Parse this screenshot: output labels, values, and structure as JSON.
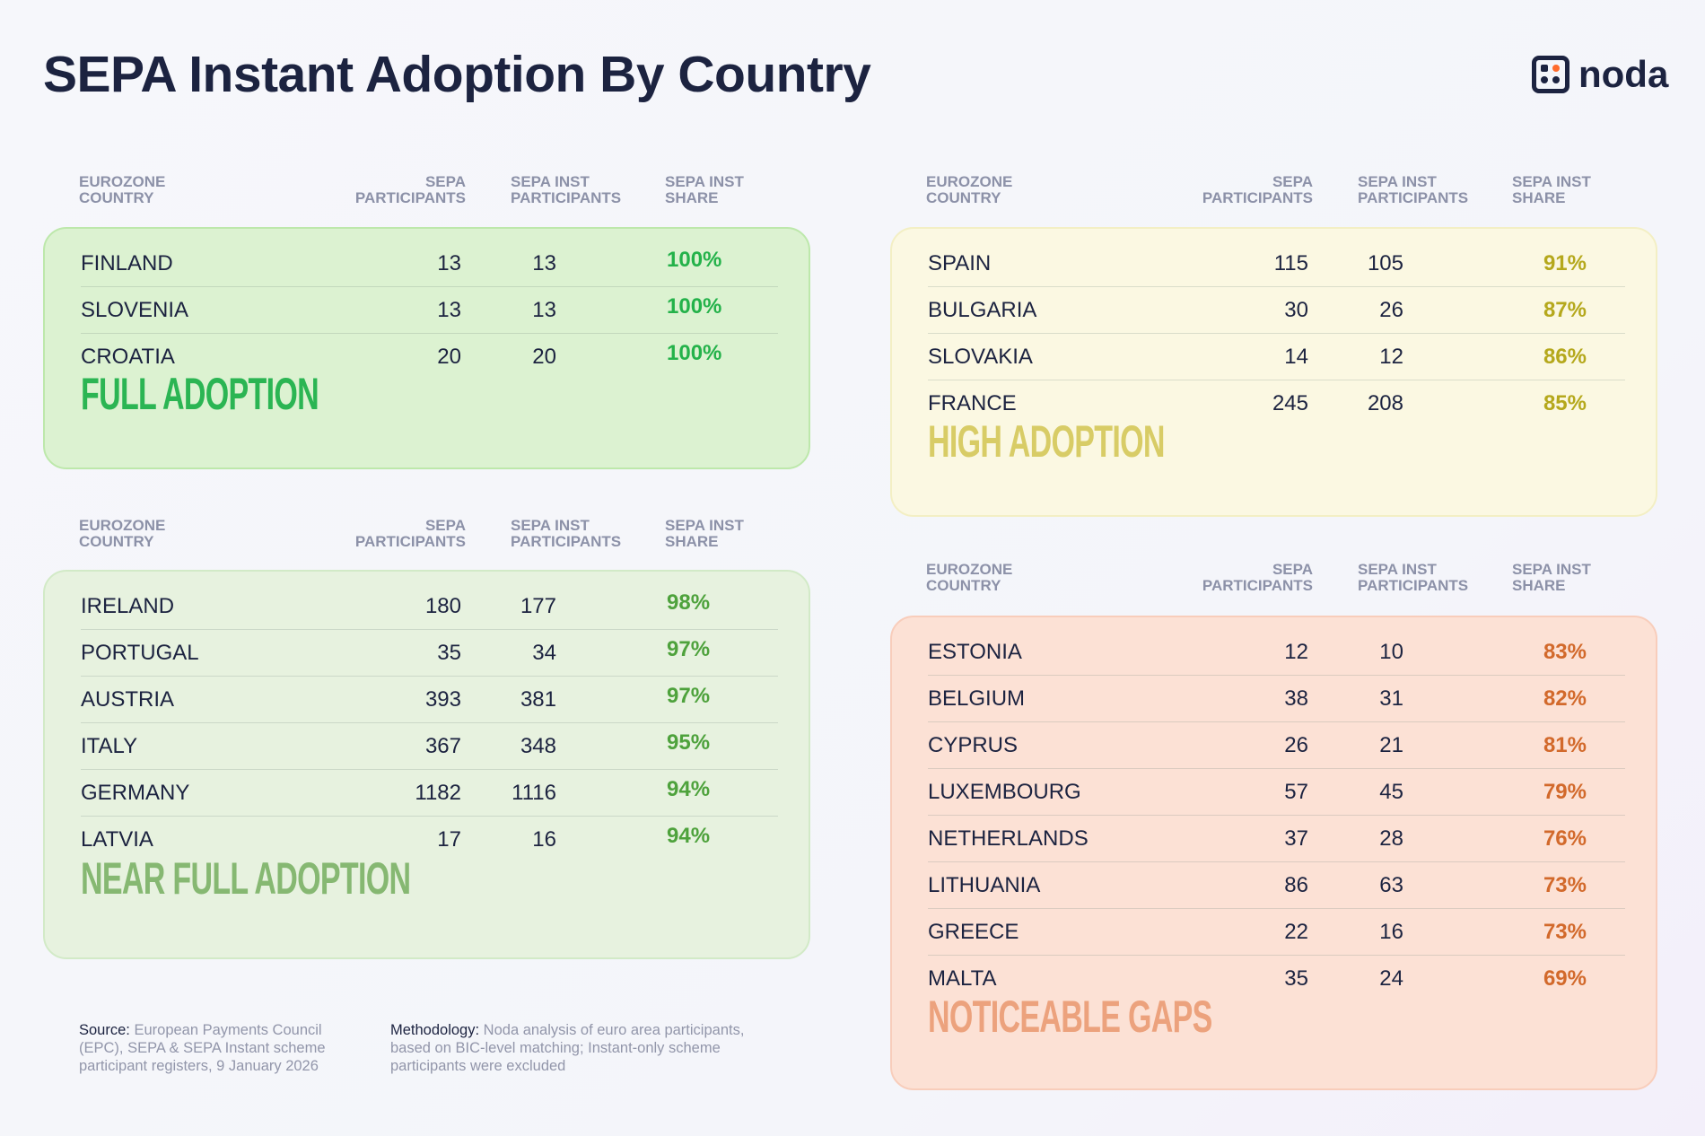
{
  "title": "SEPA Instant Adoption By Country",
  "logo": {
    "text": "noda",
    "accent": "#ff6b2c"
  },
  "headers": {
    "country": "EUROZONE COUNTRY",
    "sepa": "SEPA PARTICIPANTS",
    "inst": "SEPA INST PARTICIPANTS",
    "share": "SEPA INST SHARE"
  },
  "groups": [
    {
      "id": "full",
      "label": "FULL ADOPTION",
      "panel_color": "#dcf2d1",
      "border_color": "#bde8ab",
      "pct_color": "#24b24a",
      "label_color": "#2bb553",
      "rows": [
        {
          "country": "FINLAND",
          "sepa": "13",
          "inst": "13",
          "share": "100%"
        },
        {
          "country": "SLOVENIA",
          "sepa": "13",
          "inst": "13",
          "share": "100%"
        },
        {
          "country": "CROATIA",
          "sepa": "20",
          "inst": "20",
          "share": "100%"
        }
      ]
    },
    {
      "id": "near",
      "label": "NEAR FULL  ADOPTION",
      "panel_color": "#e7f2df",
      "border_color": "#d2eac7",
      "pct_color": "#4ea23c",
      "label_color": "#86b872",
      "rows": [
        {
          "country": "IRELAND",
          "sepa": "180",
          "inst": "177",
          "share": "98%"
        },
        {
          "country": "PORTUGAL",
          "sepa": "35",
          "inst": "34",
          "share": "97%"
        },
        {
          "country": "AUSTRIA",
          "sepa": "393",
          "inst": "381",
          "share": "97%"
        },
        {
          "country": "ITALY",
          "sepa": "367",
          "inst": "348",
          "share": "95%"
        },
        {
          "country": "GERMANY",
          "sepa": "1182",
          "inst": "1116",
          "share": "94%"
        },
        {
          "country": "LATVIA",
          "sepa": "17",
          "inst": "16",
          "share": "94%"
        }
      ]
    },
    {
      "id": "high",
      "label": "HIGH ADOPTION",
      "panel_color": "#fbf8e2",
      "border_color": "#f3efc4",
      "pct_color": "#b5a81c",
      "label_color": "#d8cc66",
      "rows": [
        {
          "country": "SPAIN",
          "sepa": "115",
          "inst": "105",
          "share": "91%"
        },
        {
          "country": "BULGARIA",
          "sepa": "30",
          "inst": "26",
          "share": "87%"
        },
        {
          "country": "SLOVAKIA",
          "sepa": "14",
          "inst": "12",
          "share": "86%"
        },
        {
          "country": "FRANCE",
          "sepa": "245",
          "inst": "208",
          "share": "85%"
        }
      ]
    },
    {
      "id": "gaps",
      "label": "NOTICEABLE GAPS",
      "panel_color": "#fce1d5",
      "border_color": "#f8cdbb",
      "pct_color": "#d2692b",
      "label_color": "#eca27d",
      "rows": [
        {
          "country": "ESTONIA",
          "sepa": "12",
          "inst": "10",
          "share": "83%"
        },
        {
          "country": "BELGIUM",
          "sepa": "38",
          "inst": "31",
          "share": "82%"
        },
        {
          "country": "CYPRUS",
          "sepa": "26",
          "inst": "21",
          "share": "81%"
        },
        {
          "country": "LUXEMBOURG",
          "sepa": "57",
          "inst": "45",
          "share": "79%"
        },
        {
          "country": "NETHERLANDS",
          "sepa": "37",
          "inst": "28",
          "share": "76%"
        },
        {
          "country": "LITHUANIA",
          "sepa": "86",
          "inst": "63",
          "share": "73%"
        },
        {
          "country": "GREECE",
          "sepa": "22",
          "inst": "16",
          "share": "73%"
        },
        {
          "country": "MALTA",
          "sepa": "35",
          "inst": "24",
          "share": "69%"
        }
      ]
    }
  ],
  "footer": {
    "source_label": "Source:",
    "source_text": "European Payments Council (EPC), SEPA & SEPA Instant scheme participant registers, 9 January 2026",
    "method_label": "Methodology:",
    "method_text": "Noda analysis of euro area participants, based on BIC-level matching; Instant-only scheme participants were excluded"
  }
}
